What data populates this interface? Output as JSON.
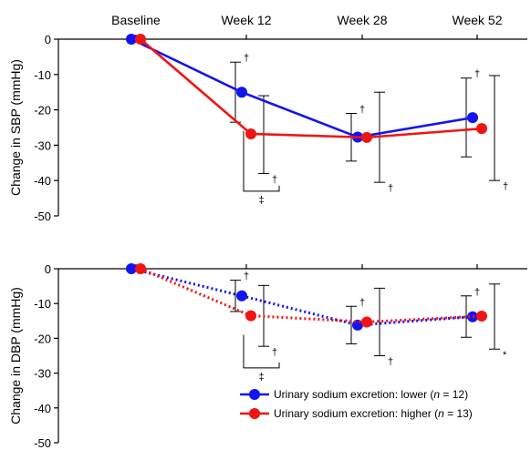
{
  "colors": {
    "lower": "#1414f0",
    "higher": "#f01414",
    "axis": "#000000"
  },
  "chart_data": [
    {
      "id": "sbp",
      "type": "line",
      "ylabel": "Change in SBP (mmHg)",
      "x_categories": [
        "Baseline",
        "Week 12",
        "Week 28",
        "Week 52"
      ],
      "ylim": [
        -50,
        0
      ],
      "yticks": [
        0,
        -10,
        -20,
        -30,
        -40,
        -50
      ],
      "line_style": "solid",
      "series": [
        {
          "key": "lower",
          "color": "#1414f0",
          "points": [
            {
              "x": "Baseline",
              "y": 0
            },
            {
              "x": "Week 12",
              "y": -15,
              "err_low": -23.5,
              "err_high": -6.5,
              "mark_high": "†"
            },
            {
              "x": "Week 28",
              "y": -27.7,
              "err_low": -34.5,
              "err_high": -21,
              "mark_high": "†"
            },
            {
              "x": "Week 52",
              "y": -22.2,
              "err_low": -33.3,
              "err_high": -11,
              "mark_high": "†"
            }
          ]
        },
        {
          "key": "higher",
          "color": "#f01414",
          "points": [
            {
              "x": "Baseline",
              "y": 0
            },
            {
              "x": "Week 12",
              "y": -26.8,
              "err_low": -38,
              "err_high": -16,
              "mark_low": "†"
            },
            {
              "x": "Week 28",
              "y": -27.8,
              "err_low": -40.5,
              "err_high": -15,
              "mark_low": "†"
            },
            {
              "x": "Week 52",
              "y": -25.3,
              "err_low": -40,
              "err_high": -10.3,
              "mark_low": "†"
            }
          ]
        }
      ],
      "comparisons": [
        {
          "x": "Week 12",
          "from": -26,
          "to": -43,
          "mark": "‡"
        }
      ]
    },
    {
      "id": "dbp",
      "type": "line",
      "ylabel": "Change in DBP (mmHg)",
      "x_categories": [
        "Baseline",
        "Week 12",
        "Week 28",
        "Week 52"
      ],
      "ylim": [
        -50,
        0
      ],
      "yticks": [
        0,
        -10,
        -20,
        -30,
        -40,
        -50
      ],
      "line_style": "dotted",
      "series": [
        {
          "key": "lower",
          "color": "#1414f0",
          "points": [
            {
              "x": "Baseline",
              "y": 0
            },
            {
              "x": "Week 12",
              "y": -7.8,
              "err_low": -12.3,
              "err_high": -3.3,
              "mark_high": "†"
            },
            {
              "x": "Week 28",
              "y": -16.2,
              "err_low": -21.6,
              "err_high": -10.8,
              "mark_high": "†"
            },
            {
              "x": "Week 52",
              "y": -13.8,
              "err_low": -19.7,
              "err_high": -7.8,
              "mark_high": "†"
            }
          ]
        },
        {
          "key": "higher",
          "color": "#f01414",
          "points": [
            {
              "x": "Baseline",
              "y": 0
            },
            {
              "x": "Week 12",
              "y": -13.5,
              "err_low": -22.3,
              "err_high": -4.8,
              "mark_low": "†"
            },
            {
              "x": "Week 28",
              "y": -15.3,
              "err_low": -25,
              "err_high": -5.6,
              "mark_low": "†"
            },
            {
              "x": "Week 52",
              "y": -13.6,
              "err_low": -23.1,
              "err_high": -4.4,
              "mark_low": "*"
            }
          ]
        }
      ],
      "comparisons": [
        {
          "x": "Week 12",
          "from": -19,
          "to": -28.5,
          "mark": "‡"
        }
      ]
    }
  ],
  "legend": {
    "placement": "bottom-right",
    "items": [
      {
        "key": "lower",
        "color": "#1414f0",
        "label": "Urinary sodium excretion: lower (n = 12)",
        "prefix": "Urinary  sodium  excretion:  lower  (",
        "italic": "n",
        "suffix": " = 12)"
      },
      {
        "key": "higher",
        "color": "#f01414",
        "label": "Urinary sodium excretion: higher (n = 13)",
        "prefix": "Urinary  sodium  excretion:  higher  (",
        "italic": "n",
        "suffix": " = 13)"
      }
    ]
  }
}
